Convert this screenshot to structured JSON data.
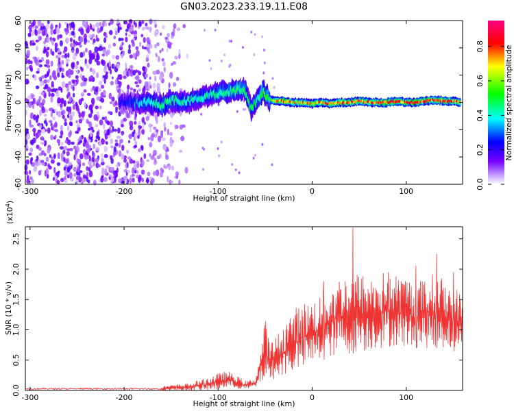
{
  "title": "GN03.2023.233.19.11.E08",
  "chart_data": [
    {
      "type": "heatmap",
      "xlabel": "Height of straight line (km)",
      "ylabel": "Frequency (Hz)",
      "xlim": [
        -305,
        160
      ],
      "ylim": [
        -60,
        60
      ],
      "xticks": [
        -300,
        -200,
        -100,
        0,
        100
      ],
      "yticks": [
        -60,
        -40,
        -20,
        0,
        20,
        40,
        60
      ],
      "colorbar": {
        "label": "Normalized spectral amplitude",
        "range": [
          0.0,
          0.95
        ],
        "ticks": [
          "0.0",
          "0.2",
          "0.4",
          "0.6",
          "0.8"
        ],
        "tick_values": [
          0.0,
          0.2,
          0.4,
          0.6,
          0.8
        ],
        "colormap": [
          "#ffffff",
          "#7700ff",
          "#0000ff",
          "#00ffff",
          "#00ff00",
          "#ffff00",
          "#ff0000",
          "#ff0080"
        ]
      },
      "ridge": {
        "x": [
          -200,
          -175,
          -160,
          -150,
          -135,
          -120,
          -110,
          -100,
          -90,
          -80,
          -72,
          -65,
          -58,
          -52,
          -45,
          -40,
          -30,
          -20,
          -10,
          0,
          10,
          20,
          30,
          40,
          50,
          60,
          70,
          80,
          90,
          100,
          110,
          120,
          130,
          140,
          150,
          160
        ],
        "freq": [
          0,
          0,
          -2,
          2,
          0,
          3,
          5,
          7,
          8,
          9,
          10,
          -5,
          2,
          8,
          2,
          1,
          1,
          0,
          0,
          -1,
          0,
          -1,
          0,
          0,
          1,
          0,
          0,
          0,
          1,
          0,
          0,
          1,
          2,
          1,
          1,
          0
        ],
        "amplitude": [
          0.25,
          0.45,
          0.5,
          0.48,
          0.45,
          0.45,
          0.45,
          0.5,
          0.5,
          0.55,
          0.55,
          0.5,
          0.5,
          0.6,
          0.55,
          0.75,
          0.85,
          0.75,
          0.8,
          0.75,
          0.8,
          0.8,
          0.85,
          0.85,
          0.8,
          0.85,
          0.85,
          0.9,
          0.85,
          0.85,
          0.9,
          0.85,
          0.85,
          0.9,
          0.85,
          0.8
        ]
      },
      "noise_region": {
        "x_range": [
          -305,
          -130
        ],
        "freq_range": [
          -60,
          60
        ]
      }
    },
    {
      "type": "line",
      "xlabel": "Height of straight line (km)",
      "ylabel": "SNR (10 * v/v)",
      "scale_label": "(x10",
      "scale_exp": "4",
      "scale_close": ")",
      "xlim": [
        -305,
        160
      ],
      "ylim": [
        0,
        27000
      ],
      "xticks": [
        -300,
        -200,
        -100,
        0,
        100
      ],
      "yticks": [
        0,
        5000,
        10000,
        15000,
        20000,
        25000
      ],
      "ytick_labels": [
        "0.0",
        "0.5",
        "1.0",
        "1.5",
        "2.0",
        "2.5"
      ],
      "color": "#ee3333",
      "envelope": {
        "x": [
          -305,
          -200,
          -160,
          -130,
          -110,
          -100,
          -90,
          -80,
          -70,
          -60,
          -55,
          -50,
          -45,
          -40,
          -30,
          -20,
          -10,
          0,
          10,
          20,
          30,
          40,
          50,
          60,
          70,
          80,
          90,
          100,
          110,
          120,
          130,
          140,
          150,
          160
        ],
        "low": [
          0,
          0,
          0,
          0,
          0,
          100,
          500,
          300,
          200,
          400,
          1200,
          1500,
          1500,
          2000,
          2500,
          3000,
          3500,
          4000,
          5000,
          5500,
          6000,
          6000,
          6500,
          6500,
          7000,
          7000,
          7500,
          7000,
          7000,
          7000,
          7000,
          7000,
          6500,
          6500
        ],
        "high": [
          200,
          300,
          700,
          1200,
          2200,
          2800,
          3200,
          2400,
          1500,
          2200,
          6500,
          12000,
          8000,
          8500,
          11000,
          13500,
          14500,
          15000,
          16000,
          17500,
          19000,
          19500,
          19500,
          19000,
          19000,
          20000,
          19000,
          19000,
          18000,
          18500,
          19500,
          18500,
          17500,
          16000
        ]
      },
      "spikes": [
        {
          "x": 43,
          "y": 26800
        },
        {
          "x": 132,
          "y": 22500
        },
        {
          "x": 12,
          "y": 18000
        },
        {
          "x": 110,
          "y": 20500
        },
        {
          "x": 150,
          "y": 19500
        }
      ]
    }
  ]
}
